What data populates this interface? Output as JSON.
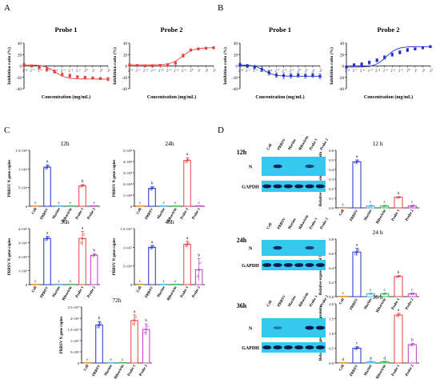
{
  "panel_letters": [
    "A",
    "B",
    "C",
    "D"
  ],
  "colors": {
    "red": "#e8413c",
    "blue": "#1f2fd0",
    "cell": "#f28c28",
    "marine": "#3fb6e8",
    "ribavirin": "#2fbf4f",
    "probe1_bar": "#e8413c",
    "probe2_bar": "#c03cc8",
    "blot_bg": "#35c9ef",
    "blot_band": "#0b1a4a"
  },
  "chart_data": [
    {
      "panel": "A",
      "type": "scatter",
      "fit": "sigmoid",
      "title": "Probe 1",
      "xlabel": "Concentration (mg/mL)",
      "ylabel": "Inhibition ratio (%)",
      "yticks": [
        "40",
        "20",
        "0",
        "-20",
        "-40"
      ],
      "ylim": [
        -40,
        40
      ],
      "xticks": [
        "2⁻⁸",
        "2⁻⁷",
        "2⁻⁶",
        "2⁻⁵",
        "2⁻⁴",
        "2⁻³",
        "2⁻²",
        "2⁻¹",
        "2⁰",
        "2¹",
        "2²",
        "2³"
      ],
      "x": [
        -8,
        -7,
        -6,
        -5,
        -4,
        -3,
        -2,
        -1,
        0,
        1,
        2,
        3
      ],
      "y": [
        2,
        0,
        -3,
        -6,
        -10,
        -15,
        -17,
        -19,
        -20,
        -21,
        -22,
        -23
      ],
      "err": [
        3,
        2,
        2,
        3,
        3,
        3,
        3,
        2,
        2,
        2,
        2,
        3
      ]
    },
    {
      "panel": "A",
      "type": "scatter",
      "fit": "sigmoid",
      "title": "Probe 2",
      "xlabel": "Concentration (mg/mL)",
      "ylabel": "Inhibition ratio (%)",
      "yticks": [
        "40",
        "20",
        "0",
        "-20",
        "-40"
      ],
      "ylim": [
        -40,
        40
      ],
      "xticks": [
        "2⁻⁸",
        "2⁻⁷",
        "2⁻⁶",
        "2⁻⁵",
        "2⁻⁴",
        "2⁻³",
        "2⁻²",
        "2⁻¹",
        "2⁰",
        "2¹",
        "2²",
        "2³"
      ],
      "x": [
        -8,
        -7,
        -6,
        -5,
        -4,
        -3,
        -2,
        -1,
        0,
        1,
        2,
        3
      ],
      "y": [
        2,
        1,
        0,
        0,
        1,
        2,
        5,
        18,
        28,
        30,
        31,
        32
      ],
      "err": [
        2,
        1,
        1,
        1,
        1,
        2,
        3,
        3,
        2,
        2,
        2,
        2
      ]
    },
    {
      "panel": "B",
      "type": "scatter",
      "fit": "sigmoid",
      "title": "Probe 1",
      "xlabel": "Concentration (mg/mL)",
      "ylabel": "Inhibition ratio (%)",
      "yticks": [
        "40",
        "20",
        "0",
        "-20",
        "-40"
      ],
      "ylim": [
        -40,
        40
      ],
      "xticks": [
        "2⁻⁸",
        "2⁻⁷",
        "2⁻⁶",
        "2⁻⁵",
        "2⁻⁴",
        "2⁻³",
        "2⁻²",
        "2⁻¹",
        "2⁰",
        "2¹",
        "2²",
        "2³"
      ],
      "x": [
        -8,
        -7,
        -6,
        -5,
        -4,
        -3,
        -2,
        -1,
        0,
        1,
        2,
        3
      ],
      "y": [
        2,
        0,
        -2,
        -6,
        -12,
        -16,
        -17,
        -17,
        -16,
        -17,
        -16,
        -18
      ],
      "err": [
        3,
        3,
        3,
        4,
        4,
        4,
        5,
        4,
        4,
        4,
        4,
        4
      ]
    },
    {
      "panel": "B",
      "type": "scatter",
      "fit": "sigmoid",
      "title": "Probe 2",
      "xlabel": "Concentration (mg/mL)",
      "ylabel": "Inhibition ratio (%)",
      "yticks": [
        "40",
        "20",
        "0",
        "-20",
        "-40"
      ],
      "ylim": [
        -40,
        40
      ],
      "xticks": [
        "2⁻⁸",
        "2⁻⁷",
        "2⁻⁶",
        "2⁻⁵",
        "2⁻⁴",
        "2⁻³",
        "2⁻²",
        "2⁻¹",
        "2⁰",
        "2¹",
        "2²",
        "2³"
      ],
      "x": [
        -8,
        -7,
        -6,
        -5,
        -4,
        -3,
        -2,
        -1,
        0,
        1,
        2,
        3
      ],
      "y": [
        -2,
        2,
        3,
        6,
        10,
        15,
        20,
        24,
        28,
        30,
        32,
        34
      ],
      "err": [
        2,
        2,
        3,
        3,
        3,
        3,
        3,
        3,
        3,
        2,
        2,
        2
      ]
    },
    {
      "panel": "C",
      "type": "bar",
      "title": "12h",
      "ylabel": "PRRSV N gene copies",
      "categories": [
        "Cell",
        "PRRSV",
        "Marine",
        "Ribavirin",
        "Probe 1",
        "Probe 2"
      ],
      "yticks": [
        "0",
        "5×10⁴",
        "1×10⁵",
        "1.5×10⁵"
      ],
      "ylim": [
        0,
        150000
      ],
      "values": [
        0,
        105000,
        0,
        0,
        55000,
        0
      ],
      "err": [
        0,
        6000,
        0,
        0,
        3000,
        0
      ],
      "letters": [
        "c",
        "a",
        "c",
        "c",
        "b",
        "c"
      ]
    },
    {
      "panel": "C",
      "type": "bar",
      "title": "24h",
      "ylabel": "PRRSV N gene copies",
      "categories": [
        "Cell",
        "PRRSV",
        "Marine",
        "Ribavirin",
        "Probe 1",
        "Probe 2"
      ],
      "yticks": [
        "0",
        "1×10⁴",
        "2×10⁴",
        "3×10⁴",
        "4×10⁴",
        "5×10⁴"
      ],
      "ylim": [
        0,
        50000
      ],
      "values": [
        0,
        16000,
        0,
        0,
        41000,
        0
      ],
      "err": [
        0,
        1500,
        0,
        0,
        2500,
        0
      ],
      "letters": [
        "c",
        "b",
        "c",
        "c",
        "a",
        "c"
      ]
    },
    {
      "panel": "C",
      "type": "bar",
      "title": "36h",
      "ylabel": "PRRSV N gene copies",
      "categories": [
        "Cell",
        "PRRSV",
        "Marine",
        "Ribavirin",
        "Probe 1",
        "Probe 2"
      ],
      "yticks": [
        "0",
        "1×10⁶",
        "2×10⁶",
        "3×10⁶",
        "4×10⁶"
      ],
      "ylim": [
        0,
        4000000
      ],
      "values": [
        0,
        3300000,
        0,
        0,
        3300000,
        2100000
      ],
      "err": [
        0,
        150000,
        0,
        0,
        500000,
        100000
      ],
      "letters": [
        "c",
        "a",
        "c",
        "c",
        "a",
        "b"
      ]
    },
    {
      "panel": "C",
      "type": "bar",
      "title": "48h",
      "ylabel": "PRRSV N gene copies",
      "categories": [
        "Cell",
        "PRRSV",
        "Marine",
        "Ribavirin",
        "Probe 1",
        "Probe 2"
      ],
      "yticks": [
        "0",
        "5×10⁶",
        "1×10⁷",
        "1.5×10⁷"
      ],
      "ylim": [
        0,
        15000000
      ],
      "values": [
        0,
        10000000,
        0,
        0,
        10800000,
        4000000
      ],
      "err": [
        0,
        500000,
        0,
        0,
        800000,
        3000000
      ],
      "letters": [
        "c",
        "a",
        "c",
        "c",
        "a",
        "b"
      ]
    },
    {
      "panel": "C",
      "type": "bar",
      "title": "72h",
      "ylabel": "PRRSV N gene copies",
      "categories": [
        "Cell",
        "PRRSV",
        "Marine",
        "Ribavirin",
        "Probe 1",
        "Probe 2"
      ],
      "yticks": [
        "0",
        "5×10⁶",
        "1×10⁷",
        "1.5×10⁷",
        "2×10⁷",
        "2.5×10⁷"
      ],
      "ylim": [
        0,
        25000000
      ],
      "values": [
        0,
        17000000,
        0,
        0,
        19000000,
        15000000
      ],
      "err": [
        0,
        1500000,
        0,
        0,
        2500000,
        2500000
      ],
      "letters": [
        "c",
        "b",
        "c",
        "c",
        "a",
        "b"
      ]
    },
    {
      "panel": "D",
      "type": "bar",
      "title": "12 h",
      "ylabel": "Relative expression of N protein",
      "categories": [
        "Cell",
        "PRRSV",
        "Marine",
        "Ribavirin",
        "Probe 1",
        "Probe 2"
      ],
      "yticks": [
        "0.0",
        "0.1",
        "0.2",
        "0.3",
        "0.4",
        "0.5",
        "0.6"
      ],
      "ylim": [
        0,
        0.6
      ],
      "values": [
        0,
        0.48,
        0.02,
        0.02,
        0.11,
        0.02
      ],
      "err": [
        0,
        0.02,
        0.005,
        0.005,
        0.005,
        0.005
      ],
      "letters": [
        "c",
        "a",
        "c",
        "c",
        "b",
        "c"
      ]
    },
    {
      "panel": "D",
      "type": "bar",
      "title": "24 h",
      "ylabel": "Relative expression of N protein",
      "categories": [
        "Cell",
        "PRRSV",
        "Marine",
        "Ribavirin",
        "Probe 1",
        "Probe 2"
      ],
      "yticks": [
        "0.0",
        "0.2",
        "0.4",
        "0.6",
        "0.8"
      ],
      "ylim": [
        0,
        0.8
      ],
      "values": [
        0,
        0.62,
        0.04,
        0.04,
        0.28,
        0.04
      ],
      "err": [
        0,
        0.05,
        0.005,
        0.005,
        0.01,
        0.005
      ],
      "letters": [
        "c",
        "a",
        "c",
        "c",
        "b",
        "c"
      ]
    },
    {
      "panel": "D",
      "type": "bar",
      "title": "36 h",
      "ylabel": "Relative expression of N protein",
      "categories": [
        "Cell",
        "PRRSV",
        "Marine",
        "Ribavirin",
        "Probe 1",
        "Probe 2"
      ],
      "yticks": [
        "0.0",
        "0.5",
        "1.0",
        "1.5",
        "2.0"
      ],
      "ylim": [
        0,
        2.0
      ],
      "values": [
        0,
        0.5,
        0.04,
        0.04,
        1.62,
        0.62
      ],
      "err": [
        0,
        0.05,
        0.005,
        0.005,
        0.06,
        0.04
      ],
      "letters": [
        "d",
        "c",
        "d",
        "d",
        "a",
        "b"
      ]
    }
  ],
  "blots": [
    {
      "time": "12h",
      "bands": {
        "N": [
          0,
          0.85,
          0,
          0,
          0.6,
          0
        ],
        "GAPDH": [
          1,
          1,
          1,
          1,
          1,
          1
        ]
      }
    },
    {
      "time": "24h",
      "bands": {
        "N": [
          0,
          0.85,
          0,
          0,
          0.65,
          0
        ],
        "GAPDH": [
          1,
          1,
          1,
          1,
          1,
          1
        ]
      }
    },
    {
      "time": "36h",
      "bands": {
        "N": [
          0,
          0.15,
          0,
          0,
          1,
          1
        ],
        "GAPDH": [
          1,
          1,
          1,
          1,
          1,
          1
        ]
      }
    }
  ],
  "blot_lanes": [
    "Cell",
    "PRRSV",
    "Marine",
    "Ribavirin",
    "Probe 1",
    "Probe 2"
  ],
  "blot_rows": [
    "N",
    "GAPDH"
  ]
}
